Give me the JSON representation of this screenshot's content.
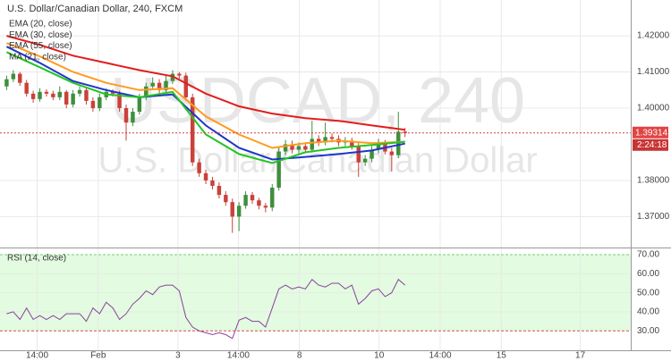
{
  "chart_data": [
    {
      "type": "candlestick",
      "title": "U.S. Dollar/Canadian Dollar, 240, FXCM",
      "watermark": {
        "symbol": "USDCAD, 240",
        "name": "U.S. Dollar/Canadian Dollar"
      },
      "up_color": "#3d8f3d",
      "down_color": "#c9413a",
      "open": [
        1.406,
        1.408,
        1.4095,
        1.407,
        1.404,
        1.4025,
        1.4045,
        1.404,
        1.403,
        1.4045,
        1.401,
        1.404,
        1.405,
        1.402,
        1.4,
        1.403,
        1.4045,
        1.404,
        1.4,
        1.396,
        1.399,
        1.403,
        1.406,
        1.407,
        1.405,
        1.4075,
        1.4095,
        1.409,
        1.403,
        1.385,
        1.382,
        1.38,
        1.3785,
        1.376,
        1.374,
        1.37,
        1.373,
        1.376,
        1.3745,
        1.373,
        1.3725,
        1.378,
        1.388,
        1.39,
        1.3885,
        1.3895,
        1.3885,
        1.3915,
        1.3905,
        1.392,
        1.3915,
        1.3905,
        1.391,
        1.3895,
        1.385,
        1.386,
        1.3885,
        1.3905,
        1.388,
        1.387,
        1.3935
      ],
      "high": [
        1.409,
        1.4105,
        1.41,
        1.4078,
        1.4048,
        1.4055,
        1.4052,
        1.4048,
        1.406,
        1.405,
        1.405,
        1.406,
        1.4058,
        1.403,
        1.404,
        1.4055,
        1.4052,
        1.4048,
        1.401,
        1.4,
        1.404,
        1.407,
        1.4085,
        1.408,
        1.409,
        1.4105,
        1.41,
        1.4098,
        1.404,
        1.386,
        1.383,
        1.381,
        1.3795,
        1.377,
        1.375,
        1.374,
        1.377,
        1.3768,
        1.3752,
        1.3738,
        1.379,
        1.389,
        1.3912,
        1.391,
        1.3905,
        1.3905,
        1.3965,
        1.3925,
        1.396,
        1.393,
        1.3925,
        1.392,
        1.3918,
        1.3905,
        1.387,
        1.3895,
        1.3915,
        1.3912,
        1.389,
        1.399,
        1.3945
      ],
      "low": [
        1.405,
        1.4072,
        1.4062,
        1.4032,
        1.4015,
        1.4018,
        1.4032,
        1.4022,
        1.4022,
        1.4,
        1.4002,
        1.4032,
        1.401,
        1.399,
        1.3992,
        1.4022,
        1.4032,
        1.399,
        1.391,
        1.395,
        1.3982,
        1.4022,
        1.4052,
        1.404,
        1.4042,
        1.4067,
        1.4082,
        1.402,
        1.384,
        1.381,
        1.379,
        1.3775,
        1.375,
        1.373,
        1.3655,
        1.366,
        1.3722,
        1.3735,
        1.372,
        1.3712,
        1.3715,
        1.3772,
        1.387,
        1.3875,
        1.3875,
        1.3875,
        1.3877,
        1.3895,
        1.3897,
        1.3905,
        1.3895,
        1.3895,
        1.3885,
        1.381,
        1.384,
        1.385,
        1.3875,
        1.3872,
        1.3825,
        1.3862,
        1.392
      ],
      "close": [
        1.408,
        1.4095,
        1.407,
        1.404,
        1.4025,
        1.4045,
        1.404,
        1.403,
        1.4045,
        1.401,
        1.404,
        1.405,
        1.402,
        1.4,
        1.403,
        1.4045,
        1.404,
        1.4,
        1.396,
        1.399,
        1.403,
        1.406,
        1.407,
        1.405,
        1.4075,
        1.4095,
        1.409,
        1.403,
        1.385,
        1.382,
        1.38,
        1.3785,
        1.376,
        1.374,
        1.37,
        1.373,
        1.376,
        1.3745,
        1.373,
        1.3725,
        1.378,
        1.388,
        1.39,
        1.3885,
        1.3895,
        1.3885,
        1.3915,
        1.3905,
        1.392,
        1.3915,
        1.3905,
        1.391,
        1.3895,
        1.385,
        1.386,
        1.3885,
        1.3905,
        1.388,
        1.387,
        1.3935,
        1.3931
      ],
      "series": [
        {
          "name": "EMA (20, close)",
          "color": "#1f35c9",
          "x": [
            0,
            5,
            10,
            15,
            20,
            25,
            30,
            35,
            40,
            45,
            50,
            55,
            60
          ],
          "values": [
            1.417,
            1.4125,
            1.4075,
            1.405,
            1.403,
            1.4038,
            1.3952,
            1.389,
            1.3858,
            1.3865,
            1.3873,
            1.3883,
            1.3902
          ]
        },
        {
          "name": "EMA (30, close)",
          "color": "#ff9a1f",
          "x": [
            0,
            5,
            10,
            15,
            20,
            25,
            30,
            35,
            40,
            45,
            50,
            55,
            60
          ],
          "values": [
            1.418,
            1.4143,
            1.41,
            1.407,
            1.405,
            1.4055,
            1.3977,
            1.3927,
            1.389,
            1.3903,
            1.391,
            1.3903,
            1.3907
          ]
        },
        {
          "name": "EMA (55, close)",
          "color": "#e31c1c",
          "x": [
            0,
            5,
            10,
            15,
            20,
            25,
            30,
            35,
            40,
            45,
            50,
            55,
            60
          ],
          "values": [
            1.42,
            1.4175,
            1.4145,
            1.4125,
            1.4105,
            1.4088,
            1.404,
            1.4005,
            1.3985,
            1.3972,
            1.3965,
            1.3952,
            1.394
          ]
        },
        {
          "name": "MA (21, close)",
          "color": "#23c423",
          "x": [
            0,
            5,
            10,
            15,
            20,
            25,
            30,
            35,
            40,
            45,
            50,
            55,
            60
          ],
          "values": [
            1.4155,
            1.4113,
            1.407,
            1.4038,
            1.403,
            1.4045,
            1.3927,
            1.3873,
            1.3848,
            1.3878,
            1.389,
            1.3898,
            1.3907
          ]
        }
      ],
      "last_price": 1.39314,
      "countdown": "2:24:18",
      "xlim": [
        -1,
        94
      ],
      "ylim": [
        1.3617,
        1.4299
      ],
      "yticks": [
        {
          "value": 1.37,
          "label": "1.37000"
        },
        {
          "value": 1.38,
          "label": "1.38000"
        },
        {
          "value": 1.4,
          "label": "1.40000"
        },
        {
          "value": 1.41,
          "label": "1.41000"
        },
        {
          "value": 1.42,
          "label": "1.42000"
        }
      ],
      "grid": true
    },
    {
      "type": "line",
      "title": "RSI (14, close)",
      "color": "#8b3fa0",
      "values": [
        39,
        40,
        36,
        42,
        36,
        38,
        36,
        38,
        36,
        39,
        39,
        39,
        35,
        42,
        39,
        45,
        42,
        36,
        39,
        44,
        47,
        51,
        49,
        53,
        54,
        54,
        51,
        37,
        32,
        30,
        29,
        28,
        29,
        28,
        26,
        35.6,
        37,
        35,
        35,
        32,
        42,
        52,
        54,
        52,
        53,
        52,
        57,
        54,
        53,
        55,
        55,
        52,
        54,
        44,
        47,
        51,
        52,
        48,
        50,
        57,
        54
      ],
      "band": [
        30,
        70
      ],
      "band_color": "#e3fbe0",
      "xlim": [
        -1,
        94
      ],
      "xticks": [
        {
          "value": 4.6,
          "label": "14:00"
        },
        {
          "value": 13.8,
          "label": "Feb"
        },
        {
          "value": 25.8,
          "label": "3"
        },
        {
          "value": 34.9,
          "label": "14:00"
        },
        {
          "value": 44.1,
          "label": "8"
        },
        {
          "value": 56.1,
          "label": "10"
        },
        {
          "value": 65.3,
          "label": "14:00"
        },
        {
          "value": 74.5,
          "label": "15"
        },
        {
          "value": 86.4,
          "label": "17"
        }
      ],
      "ylim": [
        19.8,
        72.8
      ],
      "yticks": [
        {
          "value": 30,
          "label": "30.00"
        },
        {
          "value": 40,
          "label": "40.00"
        },
        {
          "value": 50,
          "label": "50.00"
        },
        {
          "value": 60,
          "label": "60.00"
        },
        {
          "value": 70,
          "label": "70.00"
        }
      ],
      "grid": true
    }
  ]
}
